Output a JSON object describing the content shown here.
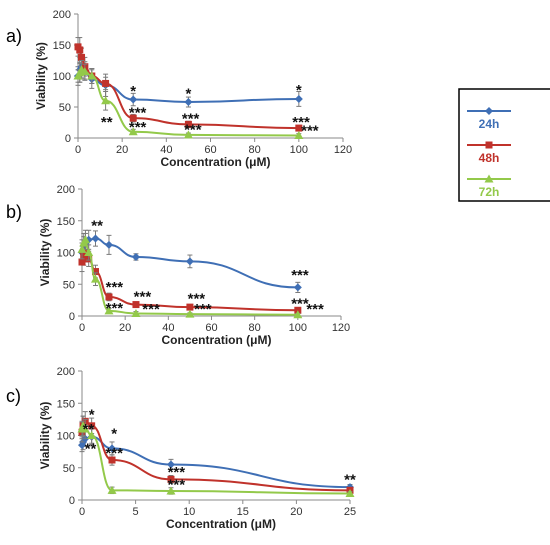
{
  "legend": {
    "placement": "right",
    "entries": [
      {
        "label": "24h",
        "color": "#3f6fb5"
      },
      {
        "label": "48h",
        "color": "#c0322b"
      },
      {
        "label": "72h",
        "color": "#93c94a"
      }
    ]
  },
  "chart_data": [
    {
      "panel_label": "a)",
      "type": "line",
      "xlabel": "Concentration (μM)",
      "ylabel": "Viability (%)",
      "xlim": [
        0,
        120
      ],
      "ylim": [
        0,
        200
      ],
      "xticks": [
        0,
        20,
        40,
        60,
        80,
        100,
        120
      ],
      "yticks": [
        0,
        50,
        100,
        150,
        200
      ],
      "grid": false,
      "series": [
        {
          "name": "24h",
          "color": "#3f6fb5",
          "marker": "diamond",
          "x": [
            0,
            0.8,
            1.6,
            3.1,
            6.25,
            12.5,
            25,
            50,
            100
          ],
          "y": [
            100,
            110,
            115,
            108,
            95,
            85,
            62,
            58,
            63
          ],
          "err": [
            15,
            20,
            18,
            15,
            15,
            18,
            10,
            8,
            12
          ]
        },
        {
          "name": "48h",
          "color": "#c0322b",
          "marker": "square",
          "x": [
            0,
            0.8,
            1.6,
            3.1,
            6.25,
            12.5,
            25,
            50,
            100
          ],
          "y": [
            147,
            142,
            130,
            115,
            100,
            88,
            32,
            22,
            16
          ],
          "err": [
            15,
            20,
            15,
            15,
            12,
            10,
            6,
            5,
            4
          ]
        },
        {
          "name": "72h",
          "color": "#93c94a",
          "marker": "triangle",
          "x": [
            0,
            0.8,
            1.6,
            3.1,
            6.25,
            12.5,
            25,
            50,
            100
          ],
          "y": [
            100,
            105,
            110,
            107,
            100,
            60,
            10,
            5,
            4
          ],
          "err": [
            10,
            15,
            15,
            12,
            12,
            15,
            4,
            3,
            3
          ]
        }
      ],
      "annotations": [
        {
          "text": "*",
          "x": 25,
          "y": 68
        },
        {
          "text": "*",
          "x": 50,
          "y": 64
        },
        {
          "text": "*",
          "x": 100,
          "y": 69
        },
        {
          "text": "***",
          "x": 27,
          "y": 33
        },
        {
          "text": "***",
          "x": 51,
          "y": 23
        },
        {
          "text": "***",
          "x": 101,
          "y": 18
        },
        {
          "text": "**",
          "x": 13,
          "y": 18
        },
        {
          "text": "***",
          "x": 27,
          "y": 10
        },
        {
          "text": "***",
          "x": 52,
          "y": 6
        },
        {
          "text": "***",
          "x": 105,
          "y": 4
        }
      ]
    },
    {
      "panel_label": "b)",
      "type": "line",
      "xlabel": "Concentration (μM)",
      "ylabel": "Viability (%)",
      "xlim": [
        0,
        120
      ],
      "ylim": [
        0,
        200
      ],
      "xticks": [
        0,
        20,
        40,
        60,
        80,
        100,
        120
      ],
      "yticks": [
        0,
        50,
        100,
        150,
        200
      ],
      "grid": false,
      "series": [
        {
          "name": "24h",
          "color": "#3f6fb5",
          "marker": "diamond",
          "x": [
            0,
            0.8,
            1.6,
            3.1,
            6.25,
            12.5,
            25,
            50,
            100
          ],
          "y": [
            100,
            110,
            115,
            120,
            122,
            112,
            93,
            86,
            45
          ],
          "err": [
            15,
            15,
            15,
            15,
            12,
            15,
            5,
            10,
            8
          ]
        },
        {
          "name": "48h",
          "color": "#c0322b",
          "marker": "square",
          "x": [
            0,
            0.8,
            1.6,
            3.1,
            6.25,
            12.5,
            25,
            50,
            100
          ],
          "y": [
            85,
            95,
            100,
            90,
            70,
            30,
            18,
            14,
            9
          ],
          "err": [
            15,
            15,
            15,
            12,
            10,
            6,
            4,
            4,
            3
          ]
        },
        {
          "name": "72h",
          "color": "#93c94a",
          "marker": "triangle",
          "x": [
            0,
            0.8,
            1.6,
            3.1,
            6.25,
            12.5,
            25,
            50,
            100
          ],
          "y": [
            105,
            115,
            120,
            100,
            58,
            8,
            4,
            3,
            2
          ],
          "err": [
            15,
            15,
            15,
            12,
            10,
            4,
            3,
            2,
            2
          ]
        }
      ],
      "annotations": [
        {
          "text": "**",
          "x": 7,
          "y": 135
        },
        {
          "text": "***",
          "x": 15,
          "y": 38
        },
        {
          "text": "***",
          "x": 28,
          "y": 23
        },
        {
          "text": "***",
          "x": 53,
          "y": 20
        },
        {
          "text": "***",
          "x": 101,
          "y": 57
        },
        {
          "text": "***",
          "x": 101,
          "y": 12
        },
        {
          "text": "***",
          "x": 15,
          "y": 5
        },
        {
          "text": "***",
          "x": 32,
          "y": 3
        },
        {
          "text": "***",
          "x": 56,
          "y": 3
        },
        {
          "text": "***",
          "x": 108,
          "y": 3
        }
      ]
    },
    {
      "panel_label": "c)",
      "type": "line",
      "xlabel": "Concentration (μM)",
      "ylabel": "Viability (%)",
      "xlim": [
        0,
        25
      ],
      "ylim": [
        0,
        200
      ],
      "xticks": [
        0,
        5,
        10,
        15,
        20,
        25
      ],
      "yticks": [
        0,
        50,
        100,
        150,
        200
      ],
      "grid": false,
      "series": [
        {
          "name": "24h",
          "color": "#3f6fb5",
          "marker": "diamond",
          "x": [
            0,
            0.1,
            0.3,
            0.9,
            2.8,
            8.3,
            25
          ],
          "y": [
            85,
            90,
            95,
            98,
            80,
            55,
            20
          ],
          "err": [
            10,
            12,
            12,
            12,
            10,
            8,
            4
          ]
        },
        {
          "name": "48h",
          "color": "#c0322b",
          "marker": "square",
          "x": [
            0,
            0.1,
            0.3,
            0.9,
            2.8,
            8.3,
            25
          ],
          "y": [
            105,
            115,
            122,
            115,
            62,
            32,
            15
          ],
          "err": [
            15,
            15,
            15,
            12,
            8,
            6,
            4
          ]
        },
        {
          "name": "72h",
          "color": "#93c94a",
          "marker": "triangle",
          "x": [
            0,
            0.1,
            0.3,
            0.9,
            2.8,
            8.3,
            25
          ],
          "y": [
            110,
            115,
            110,
            100,
            15,
            14,
            10
          ],
          "err": [
            12,
            15,
            15,
            12,
            5,
            5,
            3
          ]
        }
      ],
      "annotations": [
        {
          "text": "*",
          "x": 0.9,
          "y": 125
        },
        {
          "text": "*",
          "x": 3,
          "y": 95
        },
        {
          "text": "***",
          "x": 3,
          "y": 65
        },
        {
          "text": "***",
          "x": 8.8,
          "y": 36
        },
        {
          "text": "***",
          "x": 8.8,
          "y": 16
        },
        {
          "text": "**",
          "x": 25,
          "y": 24
        },
        {
          "text": "**",
          "x": 0.8,
          "y": 72
        },
        {
          "text": "**",
          "x": 0.6,
          "y": 102
        }
      ]
    }
  ]
}
